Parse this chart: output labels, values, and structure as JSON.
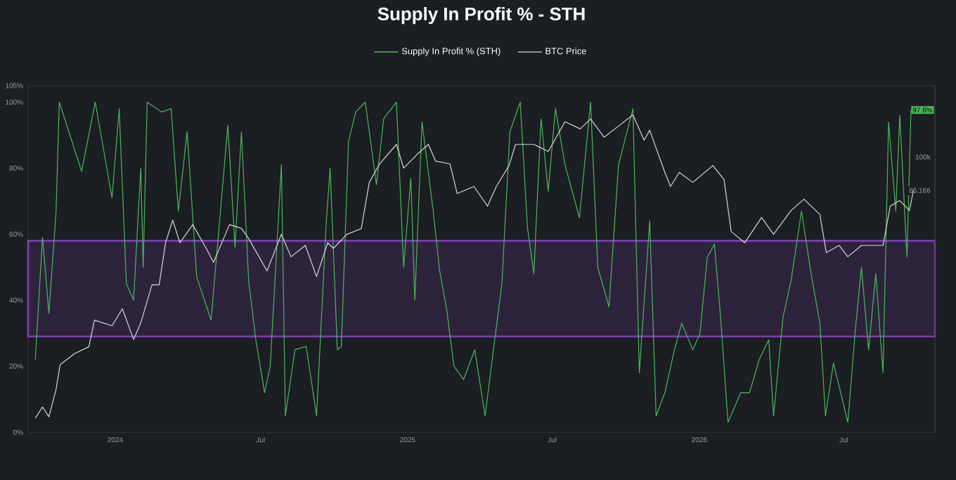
{
  "chart_data": {
    "type": "line",
    "title": "Supply In Profit % - STH",
    "legend": "top",
    "log": "y2",
    "xlim": [
      "2023-09-14",
      "2026-10-23"
    ],
    "xticks": [
      {
        "value": "2024-01-01",
        "label": "2024"
      },
      {
        "value": "2024-07-01",
        "label": "Jul"
      },
      {
        "value": "2025-01-01",
        "label": "2025"
      },
      {
        "value": "2025-07-01",
        "label": "Jul"
      },
      {
        "value": "2026-01-01",
        "label": "2026"
      },
      {
        "value": "2026-07-01",
        "label": "Jul"
      }
    ],
    "ylim": [
      0,
      105
    ],
    "yticks": [
      {
        "value": 0,
        "label": "0%"
      },
      {
        "value": 20,
        "label": "20%"
      },
      {
        "value": 40,
        "label": "40%"
      },
      {
        "value": 60,
        "label": "60%"
      },
      {
        "value": 80,
        "label": "80%"
      },
      {
        "value": 100,
        "label": "100%"
      },
      {
        "value": 105,
        "label": "105%"
      }
    ],
    "y2lim": [
      29700,
      137000
    ],
    "y2ticks": [
      {
        "value": 86166,
        "label": "86,166"
      },
      {
        "value": 100000,
        "label": "100k"
      }
    ],
    "bands": [
      {
        "axis": "y",
        "from": 29,
        "to": 58,
        "color": "#7e3fb0"
      }
    ],
    "series": [
      {
        "name": "Supply In Profit % (STH)",
        "color": "#4cb85c",
        "x": [
          "2023-09-23",
          "2023-10-02",
          "2023-10-10",
          "2023-10-19",
          "2023-10-23",
          "2023-11-20",
          "2023-12-07",
          "2023-12-28",
          "2024-01-06",
          "2024-01-15",
          "2024-01-24",
          "2024-02-02",
          "2024-02-05",
          "2024-02-10",
          "2024-02-28",
          "2024-03-11",
          "2024-03-20",
          "2024-03-31",
          "2024-04-12",
          "2024-04-30",
          "2024-05-21",
          "2024-05-30",
          "2024-06-07",
          "2024-06-16",
          "2024-06-25",
          "2024-07-06",
          "2024-07-13",
          "2024-07-27",
          "2024-08-01",
          "2024-08-13",
          "2024-08-27",
          "2024-09-09",
          "2024-09-21",
          "2024-09-26",
          "2024-10-05",
          "2024-10-10",
          "2024-10-19",
          "2024-10-28",
          "2024-11-09",
          "2024-11-23",
          "2024-12-02",
          "2024-12-18",
          "2024-12-27",
          "2025-01-05",
          "2025-01-10",
          "2025-01-19",
          "2025-02-02",
          "2025-02-10",
          "2025-02-19",
          "2025-02-28",
          "2025-03-12",
          "2025-03-26",
          "2025-04-08",
          "2025-04-20",
          "2025-04-29",
          "2025-05-09",
          "2025-05-22",
          "2025-05-31",
          "2025-06-08",
          "2025-06-17",
          "2025-06-26",
          "2025-07-05",
          "2025-07-17",
          "2025-08-04",
          "2025-08-18",
          "2025-08-27",
          "2025-09-10",
          "2025-09-22",
          "2025-10-10",
          "2025-10-18",
          "2025-10-31",
          "2025-11-08",
          "2025-11-19",
          "2025-12-01",
          "2025-12-10",
          "2025-12-24",
          "2026-01-02",
          "2026-01-11",
          "2026-01-20",
          "2026-01-28",
          "2026-02-06",
          "2026-02-22",
          "2026-03-05",
          "2026-03-17",
          "2026-03-29",
          "2026-04-04",
          "2026-04-16",
          "2026-04-26",
          "2026-05-09",
          "2026-05-21",
          "2026-06-01",
          "2026-06-08",
          "2026-06-18",
          "2026-06-30",
          "2026-07-06",
          "2026-07-15",
          "2026-07-23",
          "2026-08-01",
          "2026-08-10",
          "2026-08-19",
          "2026-08-26",
          "2026-09-04",
          "2026-09-09",
          "2026-09-18",
          "2026-09-23"
        ],
        "values": [
          22,
          59,
          36,
          67,
          100,
          79,
          100,
          71,
          98,
          45,
          40,
          80,
          50,
          100,
          97,
          98,
          67,
          91,
          47,
          34,
          93,
          56,
          91,
          46,
          28,
          12,
          20,
          81,
          5,
          25,
          26,
          5,
          63,
          80,
          25,
          26,
          88,
          97,
          100,
          75,
          95,
          100,
          50,
          77,
          40,
          94,
          67,
          49,
          37,
          20,
          16,
          25,
          5,
          28,
          45,
          91,
          100,
          62,
          48,
          95,
          73,
          98,
          81,
          65,
          100,
          50,
          38,
          81,
          98,
          18,
          64,
          5,
          12,
          25,
          33,
          25,
          30,
          53,
          57,
          34,
          3,
          12,
          12,
          22,
          28,
          5,
          35,
          46,
          67,
          48,
          33,
          5,
          21,
          9,
          3,
          30,
          50,
          25,
          48,
          18,
          94,
          67,
          96,
          53,
          97.6
        ],
        "value_labels": [
          null,
          null,
          null,
          null,
          null,
          null,
          null,
          null,
          null,
          null,
          null,
          null,
          null,
          null,
          null,
          null,
          null,
          null,
          null,
          null,
          null,
          null,
          null,
          null,
          null,
          null,
          null,
          null,
          null,
          null,
          null,
          null,
          null,
          null,
          null,
          null,
          null,
          null,
          null,
          null,
          null,
          null,
          null,
          null,
          null,
          null,
          null,
          null,
          null,
          null,
          null,
          null,
          null,
          null,
          null,
          null,
          null,
          null,
          null,
          null,
          null,
          null,
          null,
          null,
          null,
          null,
          null,
          null,
          null,
          null,
          null,
          null,
          null,
          null,
          null,
          null,
          null,
          null,
          null,
          null,
          null,
          null,
          null,
          null,
          null,
          null,
          null,
          null,
          null,
          null,
          null,
          null,
          null,
          null,
          null,
          null,
          null,
          null,
          null,
          null,
          null,
          null,
          null,
          null,
          "97.6%"
        ]
      },
      {
        "name": "BTC Price",
        "color": "#d8d8d8",
        "axis": "y2",
        "x": [
          "2023-09-23",
          "2023-10-02",
          "2023-10-10",
          "2023-10-19",
          "2023-10-24",
          "2023-11-11",
          "2023-11-29",
          "2023-12-06",
          "2023-12-28",
          "2024-01-10",
          "2024-01-24",
          "2024-02-02",
          "2024-02-16",
          "2024-02-25",
          "2024-03-04",
          "2024-03-13",
          "2024-03-22",
          "2024-04-07",
          "2024-04-24",
          "2024-05-03",
          "2024-05-23",
          "2024-06-07",
          "2024-06-16",
          "2024-07-09",
          "2024-07-27",
          "2024-08-08",
          "2024-08-26",
          "2024-09-09",
          "2024-09-23",
          "2024-09-30",
          "2024-10-17",
          "2024-11-04",
          "2024-11-14",
          "2024-11-27",
          "2024-12-18",
          "2024-12-27",
          "2025-01-13",
          "2025-01-27",
          "2025-02-05",
          "2025-02-23",
          "2025-03-04",
          "2025-03-25",
          "2025-04-11",
          "2025-04-22",
          "2025-05-08",
          "2025-05-16",
          "2025-06-08",
          "2025-06-26",
          "2025-07-17",
          "2025-08-05",
          "2025-08-18",
          "2025-09-04",
          "2025-09-22",
          "2025-10-10",
          "2025-10-24",
          "2025-10-31",
          "2025-11-19",
          "2025-11-26",
          "2025-12-07",
          "2025-12-24",
          "2026-01-18",
          "2026-02-01",
          "2026-02-10",
          "2026-02-27",
          "2026-03-20",
          "2026-04-04",
          "2026-04-26",
          "2026-05-12",
          "2026-06-01",
          "2026-06-09",
          "2026-06-25",
          "2026-07-06",
          "2026-07-23",
          "2026-08-19",
          "2026-08-28",
          "2026-09-09",
          "2026-09-21",
          "2026-09-26"
        ],
        "values": [
          31600,
          33200,
          31800,
          35900,
          40000,
          42000,
          43300,
          48700,
          47500,
          51200,
          44700,
          48100,
          56900,
          56900,
          68500,
          75700,
          68500,
          74200,
          66800,
          62800,
          74200,
          73000,
          69800,
          60500,
          71100,
          64400,
          67700,
          59000,
          68500,
          66800,
          71100,
          72900,
          89400,
          97000,
          105700,
          95200,
          101200,
          105700,
          98200,
          97000,
          85100,
          87800,
          80500,
          87800,
          96300,
          105700,
          105700,
          102500,
          116800,
          113200,
          118200,
          109100,
          114600,
          120400,
          107700,
          112500,
          93400,
          87800,
          93400,
          89400,
          96300,
          90500,
          72000,
          68500,
          76600,
          71100,
          79000,
          83000,
          77600,
          65600,
          67700,
          64400,
          67700,
          67700,
          80500,
          82500,
          79000,
          86166
        ]
      }
    ]
  }
}
